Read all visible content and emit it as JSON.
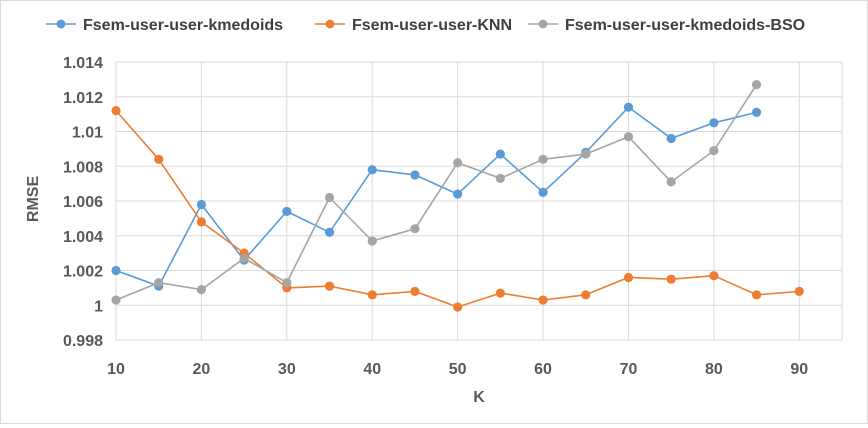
{
  "chart_data": {
    "type": "line",
    "title": "",
    "xlabel": "K",
    "ylabel": "RMSE",
    "xlim": [
      10,
      90
    ],
    "ylim": [
      0.998,
      1.014
    ],
    "x_ticks": [
      10,
      20,
      30,
      40,
      50,
      60,
      70,
      80,
      90
    ],
    "x_tick_labels": [
      "10",
      "20",
      "30",
      "40",
      "50",
      "60",
      "70",
      "80",
      "90"
    ],
    "y_ticks": [
      0.998,
      1.0,
      1.002,
      1.004,
      1.006,
      1.008,
      1.01,
      1.012,
      1.014
    ],
    "y_tick_labels": [
      "0.998",
      "1",
      "1.002",
      "1.004",
      "1.006",
      "1.008",
      "1.01",
      "1.012",
      "1.014"
    ],
    "grid": true,
    "legend_position": "top",
    "series": [
      {
        "name": "Fsem-user-user-kmedoids",
        "color": "#5b9bd5",
        "x": [
          10,
          15,
          20,
          25,
          30,
          35,
          40,
          45,
          50,
          55,
          60,
          65,
          70,
          75,
          80,
          85
        ],
        "values": [
          1.002,
          1.0011,
          1.0058,
          1.0026,
          1.0054,
          1.0042,
          1.0078,
          1.0075,
          1.0064,
          1.0087,
          1.0065,
          1.0088,
          1.0114,
          1.0096,
          1.0105,
          1.0111
        ]
      },
      {
        "name": "Fsem-user-user-KNN",
        "color": "#ed7d31",
        "x": [
          10,
          15,
          20,
          25,
          30,
          35,
          40,
          45,
          50,
          55,
          60,
          65,
          70,
          75,
          80,
          85,
          90
        ],
        "values": [
          1.0112,
          1.0084,
          1.0048,
          1.003,
          1.001,
          1.0011,
          1.0006,
          1.0008,
          0.9999,
          1.0007,
          1.0003,
          1.0006,
          1.0016,
          1.0015,
          1.0017,
          1.0006,
          1.0008
        ]
      },
      {
        "name": "Fsem-user-user-kmedoids-BSO",
        "color": "#a5a5a5",
        "x": [
          10,
          15,
          20,
          25,
          30,
          35,
          40,
          45,
          50,
          55,
          60,
          65,
          70,
          75,
          80,
          85
        ],
        "values": [
          1.0003,
          1.0013,
          1.0009,
          1.0027,
          1.0013,
          1.0062,
          1.0037,
          1.0044,
          1.0082,
          1.0073,
          1.0084,
          1.0087,
          1.0097,
          1.0071,
          1.0089,
          1.0127
        ]
      }
    ]
  }
}
